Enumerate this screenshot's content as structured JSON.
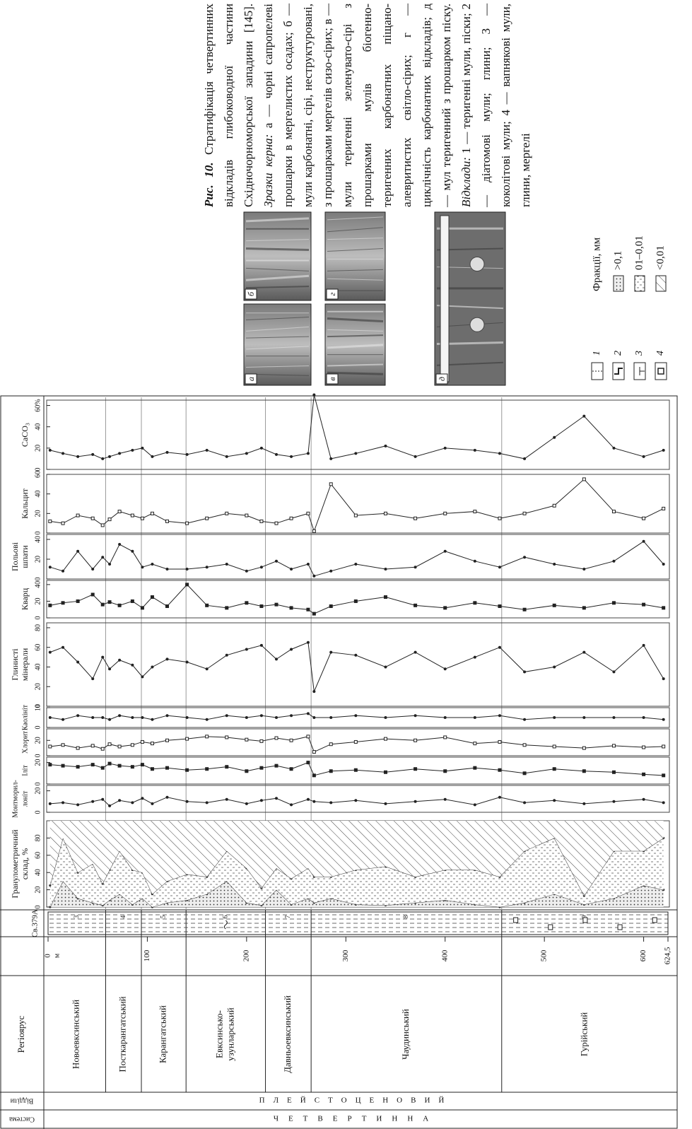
{
  "stratigraphy": {
    "headers": {
      "system": "Система",
      "division": "Відділи",
      "stage": "Регіоярус",
      "well": "Св.379А"
    },
    "system": "ЧЕТВЕРТИННА",
    "division": "ПЛЕЙСТОЦЕНОВИЙ",
    "stages": [
      {
        "name": [
          "Новоевксинський"
        ],
        "unit": "3",
        "top": 0,
        "bottom": 58
      },
      {
        "name": [
          "Посткарангатський"
        ],
        "unit": "4",
        "top": 58,
        "bottom": 94
      },
      {
        "name": [
          "Карангатський"
        ],
        "unit": "5",
        "top": 94,
        "bottom": 139
      },
      {
        "name": [
          "Евксинсько-",
          "узунларський"
        ],
        "unit": "6",
        "top": 139,
        "bottom": 219
      },
      {
        "name": [
          "Давньоевксинський"
        ],
        "unit": "7",
        "top": 219,
        "bottom": 265
      },
      {
        "name": [
          "Чаудинський"
        ],
        "unit": "8",
        "top": 265,
        "bottom": 457
      },
      {
        "name": [
          "Гурійський"
        ],
        "unit": "9",
        "top": 457,
        "bottom": 624.5
      }
    ]
  },
  "chart_data": {
    "type": "depth-profile",
    "depth_unit": "м",
    "ylim": [
      0,
      624.5
    ],
    "yticks": [
      0,
      100,
      200,
      300,
      400,
      500,
      600,
      {
        "value": 624.5,
        "label": "624,5"
      }
    ],
    "depth": [
      2,
      15,
      30,
      45,
      55,
      62,
      72,
      85,
      95,
      105,
      120,
      140,
      160,
      180,
      200,
      215,
      230,
      245,
      262,
      268,
      285,
      310,
      340,
      370,
      400,
      430,
      455,
      480,
      510,
      540,
      570,
      600,
      620
    ],
    "panels": [
      {
        "type": "stacked-area",
        "title": [
          "Гранулометричний",
          "склад, %"
        ],
        "xlim": [
          0,
          100
        ],
        "xticks": [
          0,
          20,
          40,
          60,
          80
        ],
        "legend_title": "Фракції, мм",
        "series": [
          {
            "name": ">0,1",
            "pattern": "dots",
            "color": "#333",
            "values": [
              0,
              30,
              10,
              5,
              2,
              8,
              15,
              3,
              10,
              0,
              5,
              8,
              15,
              30,
              5,
              2,
              20,
              3,
              10,
              5,
              10,
              3,
              2,
              5,
              8,
              3,
              0,
              5,
              15,
              3,
              10,
              25,
              20
            ]
          },
          {
            "name": "01–0,01",
            "pattern": "dashes",
            "color": "#333",
            "values": [
              25,
              50,
              30,
              45,
              25,
              35,
              50,
              40,
              30,
              15,
              25,
              30,
              20,
              35,
              40,
              20,
              25,
              30,
              35,
              30,
              25,
              40,
              45,
              30,
              35,
              40,
              35,
              60,
              65,
              10,
              55,
              40,
              60
            ]
          },
          {
            "name": "<0,01",
            "pattern": "hatch",
            "color": "#333",
            "values": [
              75,
              20,
              60,
              50,
              73,
              57,
              35,
              57,
              60,
              85,
              70,
              62,
              65,
              35,
              55,
              78,
              55,
              67,
              55,
              65,
              65,
              57,
              53,
              65,
              57,
              57,
              65,
              35,
              20,
              87,
              35,
              35,
              20
            ]
          }
        ]
      },
      {
        "type": "line",
        "title": [
          "Монтморил-",
          "лоніт"
        ],
        "xlim": [
          0,
          25
        ],
        "xticks": [
          0,
          20
        ],
        "marker": "dot",
        "color": "#222",
        "values": [
          8,
          9,
          7,
          10,
          12,
          6,
          11,
          9,
          13,
          8,
          14,
          10,
          9,
          12,
          8,
          11,
          13,
          7,
          12,
          10,
          9,
          11,
          8,
          10,
          12,
          7,
          14,
          9,
          11,
          8,
          10,
          12,
          9
        ]
      },
      {
        "type": "line",
        "title": [
          "Іліт"
        ],
        "xlim": [
          0,
          25
        ],
        "xticks": [
          0,
          20
        ],
        "marker": "square",
        "color": "#222",
        "values": [
          18,
          17,
          16,
          18,
          15,
          19,
          17,
          16,
          18,
          14,
          15,
          13,
          14,
          16,
          12,
          15,
          17,
          14,
          20,
          8,
          12,
          13,
          11,
          14,
          12,
          15,
          13,
          10,
          14,
          12,
          11,
          9,
          8
        ]
      },
      {
        "type": "line",
        "title": [
          "Хлорит"
        ],
        "xlim": [
          0,
          35
        ],
        "xticks": [
          0,
          20
        ],
        "marker": "open-square",
        "color": "#222",
        "values": [
          12,
          14,
          10,
          13,
          9,
          15,
          12,
          14,
          18,
          16,
          20,
          22,
          25,
          24,
          21,
          19,
          23,
          20,
          25,
          5,
          15,
          18,
          22,
          20,
          24,
          16,
          18,
          14,
          12,
          10,
          13,
          11,
          12
        ]
      },
      {
        "type": "line",
        "title": [
          "Каолініт"
        ],
        "xlim": [
          0,
          10
        ],
        "xticks": [
          0,
          10
        ],
        "marker": "dot",
        "color": "#222",
        "values": [
          5,
          4,
          6,
          5,
          5,
          4,
          6,
          5,
          5,
          4,
          6,
          5,
          4,
          6,
          5,
          6,
          5,
          6,
          7,
          5,
          5,
          6,
          5,
          6,
          5,
          5,
          6,
          4,
          5,
          5,
          5,
          5,
          4
        ]
      },
      {
        "type": "line",
        "title": [
          "Глинисті",
          "мінерали"
        ],
        "xlim": [
          0,
          85
        ],
        "xticks": [
          0,
          20,
          40,
          60,
          80
        ],
        "marker": "dot",
        "color": "#222",
        "values": [
          55,
          60,
          45,
          28,
          50,
          38,
          47,
          42,
          30,
          40,
          48,
          45,
          38,
          52,
          58,
          62,
          48,
          58,
          65,
          15,
          55,
          52,
          40,
          55,
          38,
          50,
          60,
          35,
          40,
          55,
          35,
          62,
          28
        ]
      },
      {
        "type": "line",
        "title": [
          "Кварц"
        ],
        "xlim": [
          0,
          45
        ],
        "xticks": [
          0,
          20,
          40
        ],
        "marker": "square",
        "color": "#222",
        "values": [
          15,
          18,
          20,
          28,
          16,
          19,
          15,
          20,
          12,
          25,
          14,
          40,
          15,
          12,
          18,
          14,
          16,
          12,
          10,
          5,
          14,
          20,
          25,
          15,
          12,
          18,
          14,
          10,
          15,
          12,
          18,
          16,
          12
        ]
      },
      {
        "type": "line",
        "title": [
          "Польові",
          "шпати"
        ],
        "xlim": [
          0,
          45
        ],
        "xticks": [
          0,
          20,
          40
        ],
        "marker": "dot",
        "color": "#222",
        "values": [
          12,
          8,
          28,
          10,
          22,
          15,
          35,
          28,
          12,
          15,
          10,
          10,
          12,
          15,
          8,
          12,
          18,
          10,
          15,
          3,
          8,
          15,
          10,
          12,
          28,
          18,
          12,
          22,
          15,
          10,
          18,
          38,
          15
        ]
      },
      {
        "type": "line",
        "title": [
          "Кальцит"
        ],
        "xlim": [
          0,
          60
        ],
        "xticks": [
          0,
          20,
          40,
          60
        ],
        "marker": "open-square",
        "color": "#222",
        "values": [
          12,
          10,
          18,
          15,
          8,
          14,
          22,
          18,
          15,
          20,
          12,
          10,
          15,
          20,
          18,
          12,
          10,
          15,
          20,
          2,
          50,
          18,
          20,
          15,
          20,
          22,
          15,
          20,
          28,
          55,
          22,
          15,
          25
        ]
      },
      {
        "type": "line",
        "title": [
          "CaCO₃"
        ],
        "xlim": [
          0,
          65
        ],
        "xticks": [
          0,
          20,
          40,
          {
            "value": 60,
            "label": "60%"
          }
        ],
        "marker": "dot",
        "color": "#222",
        "values": [
          18,
          15,
          12,
          14,
          10,
          12,
          15,
          18,
          20,
          12,
          16,
          14,
          18,
          12,
          15,
          20,
          14,
          12,
          15,
          70,
          10,
          15,
          22,
          12,
          20,
          18,
          15,
          10,
          30,
          50,
          20,
          12,
          18
        ]
      }
    ]
  },
  "lithology_legend": [
    "1",
    "2",
    "3",
    "4"
  ],
  "photos": [
    "а",
    "б",
    "в",
    "г",
    "д"
  ],
  "caption": {
    "label": "Рис. 10.",
    "text": "Стратифікація четвертинних відкладів глибоководної частини Східночорноморської западини [145].",
    "samples_label": "Зразки керна:",
    "samples_text": "а — чорні сапропелеві прошарки в мергелистих осадах; б — мули карбонатні, сірі, неструктуровані, з прошарками мергелів сизо-сірих; в — мули теригенні зеленувато-сірі з прошарками мулів біогенно-теригенних карбонатних піщано-алевритистих світло-сірих; г — циклічність карбонатних відкладів; д — мул теригенний з прошарком піску.",
    "deposits_label": "Відклади:",
    "deposits_text": "1 — теригенні мули, піски; 2 — діатомові мули; глини; 3 — коколітові мули; 4 — вапнякові мули, глини, мергелі"
  }
}
